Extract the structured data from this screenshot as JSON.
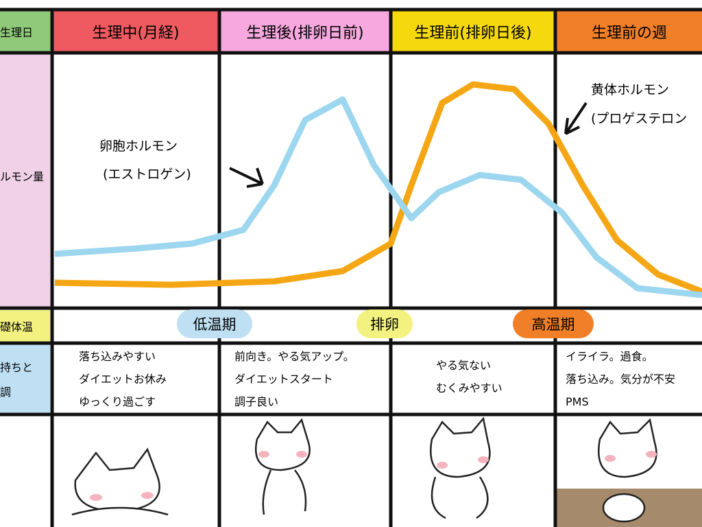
{
  "row_headers": [
    "生理日",
    "ルモン量",
    "礎体温",
    "持ちと",
    "調"
  ],
  "columns": [
    {
      "title": "生理中(月経)",
      "notes": [
        "落ち込みやすい",
        "ダイエットお休み",
        "ゆっくり過ごす"
      ]
    },
    {
      "title": "生理後(排卵日前)",
      "notes": [
        "前向き。やる気アップ。",
        "ダイエットスタート",
        "調子良い"
      ]
    },
    {
      "title": "生理前(排卵日後)",
      "notes": [
        "やる気ない",
        "むくみやすい"
      ]
    },
    {
      "title": "生理前の週",
      "notes": [
        "イライラ。過食。",
        "落ち込み。気分が不安",
        "PMS"
      ]
    }
  ],
  "hormones": {
    "estrogen": [
      "卵胞ホルモン",
      "(エストロゲン)"
    ],
    "progesterone": [
      "黄体ホルモン",
      "(プロゲステロン"
    ]
  },
  "temperature": [
    "低温期",
    "排卵",
    "高温期"
  ]
}
